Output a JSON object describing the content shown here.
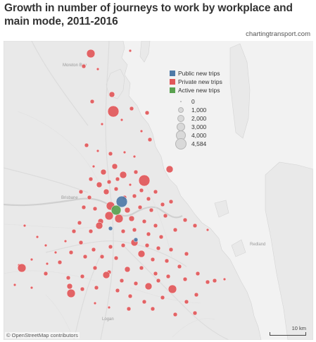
{
  "title": "Growth in number of journeys to work by workplace and main mode, 2011-2016",
  "source": "chartingtransport.com",
  "attribution": "© OpenStreetMap contributors",
  "scale_label": "10 km",
  "legend": {
    "series": [
      {
        "label": "Public new trips",
        "color": "#4e79a7"
      },
      {
        "label": "Private new trips",
        "color": "#e15759"
      },
      {
        "label": "Active new trips",
        "color": "#59a14f"
      }
    ],
    "sizes": [
      {
        "label": "0",
        "value": 0
      },
      {
        "label": "1,000",
        "value": 1000
      },
      {
        "label": "2,000",
        "value": 2000
      },
      {
        "label": "3,000",
        "value": 3000
      },
      {
        "label": "4,000",
        "value": 4000
      },
      {
        "label": "4,584",
        "value": 4584
      }
    ]
  },
  "places": [
    "Moreton Bay",
    "Brisbane",
    "Redland",
    "Logan"
  ],
  "colors": {
    "public": "#4e79a7",
    "private": "#e15759",
    "active": "#59a14f",
    "land": "#ececec",
    "water": "#dcdcdc"
  }
}
